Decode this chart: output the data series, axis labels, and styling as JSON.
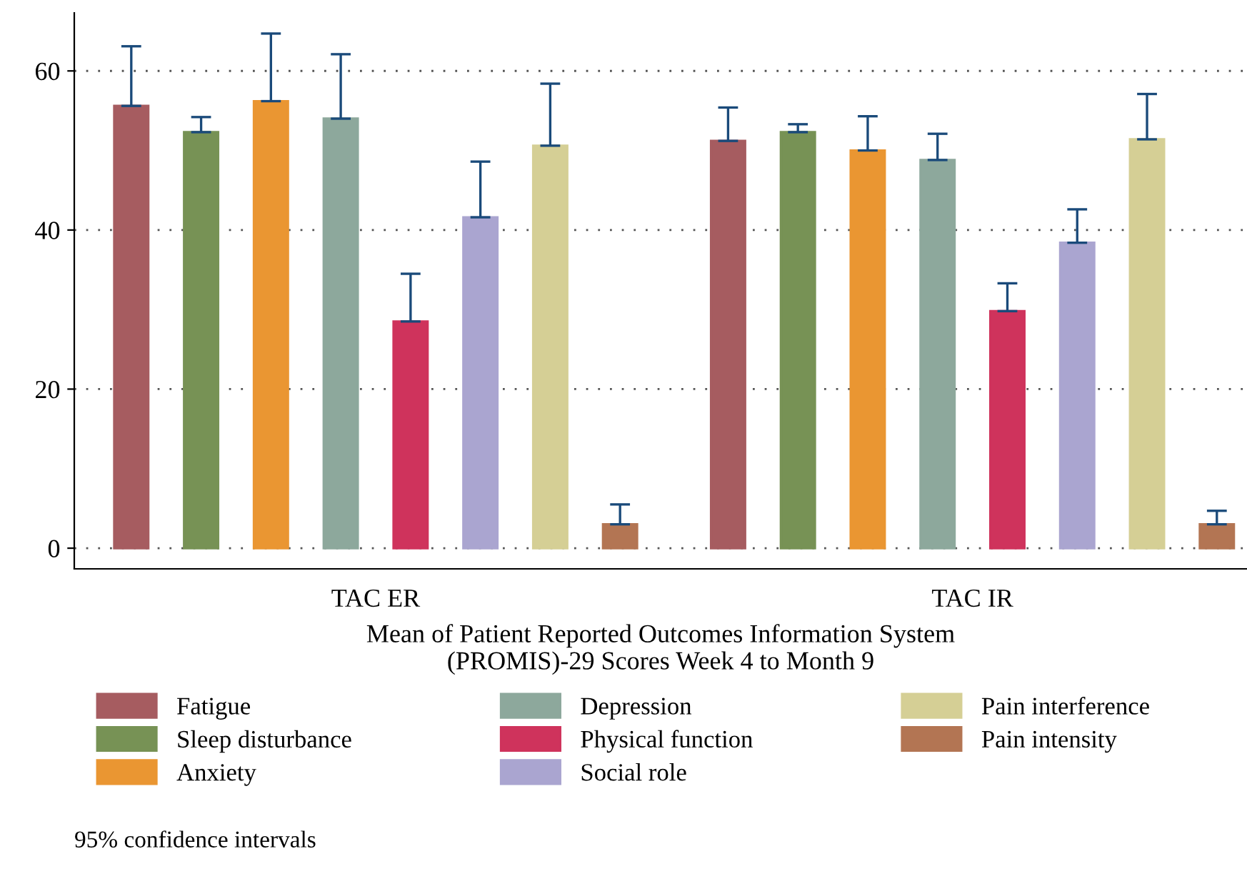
{
  "chart_data": {
    "type": "bar",
    "categories": [
      "TAC ER",
      "TAC IR"
    ],
    "xlabel": "Mean of Patient Reported Outcomes Information System\n(PROMIS)-29 Scores Week 4 to Month 9",
    "series": [
      {
        "name": "Fatigue",
        "color": "#a65c60",
        "values": [
          55.6,
          51.2
        ],
        "errors": [
          [
            55.6,
            63.1
          ],
          [
            51.2,
            55.4
          ]
        ]
      },
      {
        "name": "Sleep disturbance",
        "color": "#779255",
        "values": [
          52.3,
          52.3
        ],
        "errors": [
          [
            52.3,
            54.2
          ],
          [
            52.3,
            53.3
          ]
        ]
      },
      {
        "name": "Anxiety",
        "color": "#ea9632",
        "values": [
          56.2,
          50.0
        ],
        "errors": [
          [
            56.2,
            64.7
          ],
          [
            50.0,
            54.3
          ]
        ]
      },
      {
        "name": "Depression",
        "color": "#8da89c",
        "values": [
          54.0,
          48.8
        ],
        "errors": [
          [
            54.0,
            62.1
          ],
          [
            48.8,
            52.1
          ]
        ]
      },
      {
        "name": "Physical function",
        "color": "#cf335c",
        "values": [
          28.5,
          29.8
        ],
        "errors": [
          [
            28.5,
            34.5
          ],
          [
            29.8,
            33.3
          ]
        ]
      },
      {
        "name": "Social role",
        "color": "#aaa5d0",
        "values": [
          41.6,
          38.4
        ],
        "errors": [
          [
            41.6,
            48.6
          ],
          [
            38.4,
            42.6
          ]
        ]
      },
      {
        "name": "Pain interference",
        "color": "#d5cf95",
        "values": [
          50.6,
          51.4
        ],
        "errors": [
          [
            50.6,
            58.4
          ],
          [
            51.4,
            57.1
          ]
        ]
      },
      {
        "name": "Pain intensity",
        "color": "#b37553",
        "values": [
          3.0,
          3.0
        ],
        "errors": [
          [
            3.0,
            5.5
          ],
          [
            3.0,
            4.7
          ]
        ]
      }
    ],
    "ylim": [
      -2.6,
      67.3
    ],
    "yticks": [
      0,
      20,
      40,
      60
    ],
    "grid": "y",
    "legend": "bottom",
    "annotations": [
      "95% confidence intervals"
    ]
  }
}
